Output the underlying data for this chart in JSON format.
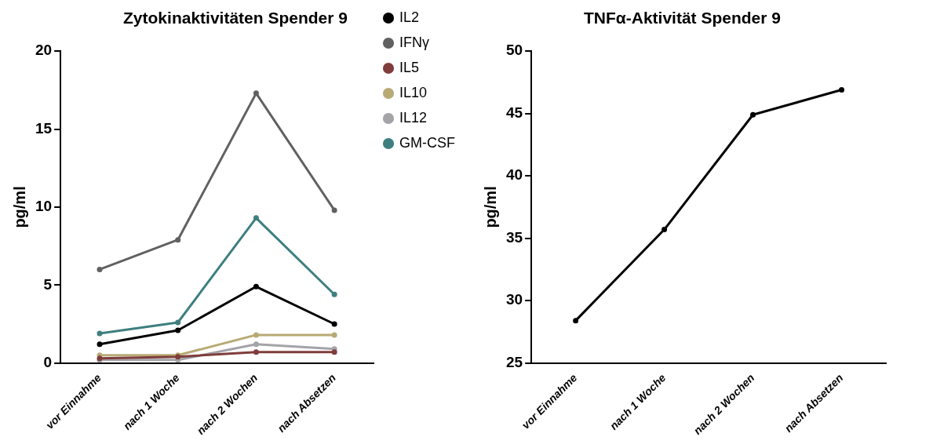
{
  "chart_data": [
    {
      "type": "line",
      "title": "Zytokinaktivitäten Spender 9",
      "ylabel": "pg/ml",
      "categories": [
        "vor Einnahme",
        "nach 1 Woche",
        "nach 2 Wochen",
        "nach Absetzen"
      ],
      "series": [
        {
          "name": "IL2",
          "color": "#000000",
          "values": [
            1.2,
            2.1,
            4.9,
            2.5
          ]
        },
        {
          "name": "IFNγ",
          "color": "#616161",
          "values": [
            6.0,
            7.9,
            17.3,
            9.8
          ]
        },
        {
          "name": "IL5",
          "color": "#7f3d3b",
          "values": [
            0.3,
            0.4,
            0.7,
            0.7
          ]
        },
        {
          "name": "IL10",
          "color": "#b7aa74",
          "values": [
            0.5,
            0.5,
            1.8,
            1.8
          ]
        },
        {
          "name": "IL12",
          "color": "#a3a3a8",
          "values": [
            0.2,
            0.2,
            1.2,
            0.9
          ]
        },
        {
          "name": "GM-CSF",
          "color": "#3e7f7f",
          "values": [
            1.9,
            2.6,
            9.3,
            4.4
          ]
        }
      ],
      "ylim": [
        0,
        20
      ],
      "yticks": [
        0,
        5,
        10,
        15,
        20
      ],
      "grid": false,
      "legend": "right",
      "marker": "circle",
      "line_style": "solid"
    },
    {
      "type": "line",
      "title": "TNFα-Aktivität Spender 9",
      "ylabel": "pg/ml",
      "categories": [
        "vor Einnahme",
        "nach 1 Woche",
        "nach 2 Wochen",
        "nach Absetzen"
      ],
      "series": [
        {
          "color": "#000000",
          "values": [
            28.4,
            35.7,
            44.9,
            46.9
          ]
        }
      ],
      "ylim": [
        25,
        50
      ],
      "yticks": [
        25,
        30,
        35,
        40,
        45,
        50
      ],
      "grid": false,
      "legend": false,
      "marker": "circle",
      "line_style": "solid"
    }
  ]
}
